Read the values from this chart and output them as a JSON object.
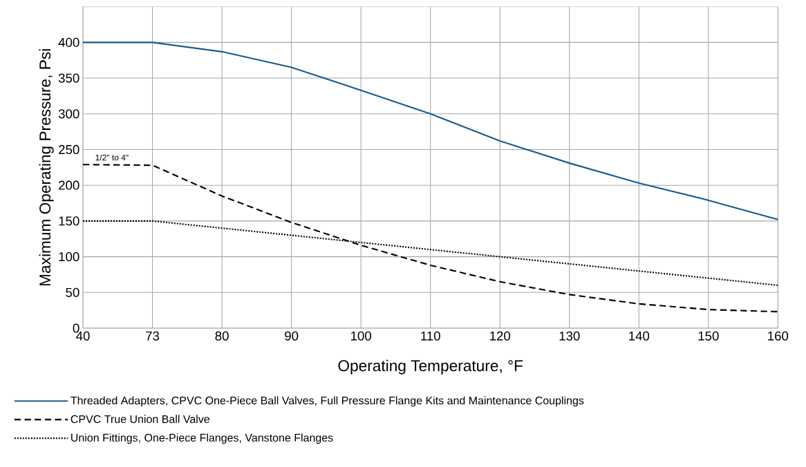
{
  "chart_data": {
    "type": "line",
    "xlabel": "Operating Temperature, °F",
    "ylabel": "Maximum Operating Pressure, Psi",
    "categories": [
      "40",
      "73",
      "80",
      "90",
      "100",
      "110",
      "120",
      "130",
      "140",
      "150",
      "160"
    ],
    "ylim": [
      0,
      450
    ],
    "yticks": [
      0,
      50,
      100,
      150,
      200,
      250,
      300,
      350,
      400
    ],
    "grid": true,
    "legend": "bottom",
    "series": [
      {
        "name": "Threaded Adapters, CPVC One-Piece Ball Valves, Full Pressure Flange Kits and Maintenance Couplings",
        "color": "#1a5a8a",
        "line_style": "solid",
        "values": [
          400,
          400,
          387,
          365,
          333,
          300,
          262,
          231,
          203,
          179,
          152
        ]
      },
      {
        "name": "CPVC True Union Ball Valve",
        "color": "#000000",
        "line_style": "dashed",
        "values": [
          229,
          228,
          185,
          148,
          116,
          88,
          65,
          47,
          34,
          26,
          23
        ]
      },
      {
        "name": "Union Fittings, One-Piece Flanges, Vanstone Flanges",
        "color": "#000000",
        "line_style": "dotted",
        "values": [
          150,
          150,
          140,
          130,
          120,
          110,
          100,
          90,
          80,
          70,
          60
        ]
      }
    ],
    "annotations": [
      {
        "text": "1/2\" to 4\"",
        "x": "40",
        "y": 228
      }
    ]
  }
}
